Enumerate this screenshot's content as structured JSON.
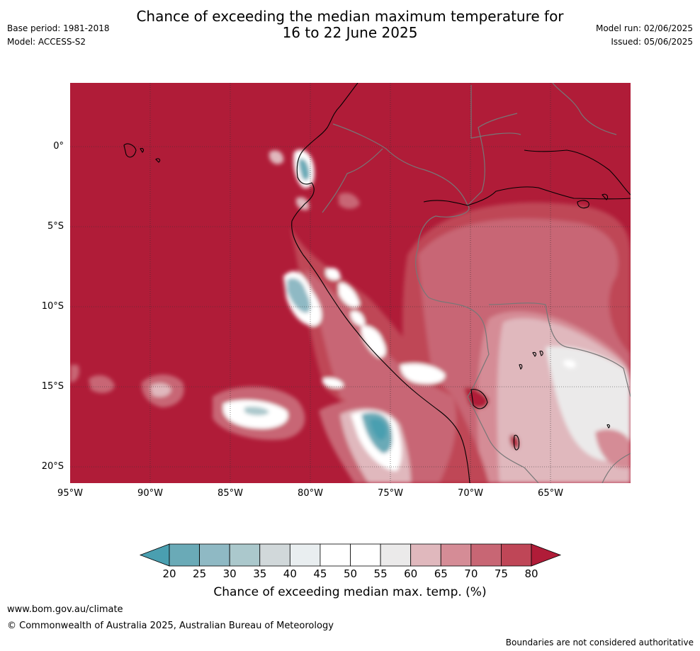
{
  "header": {
    "base_period": "Base period: 1981-2018",
    "model": "Model: ACCESS-S2",
    "title_line1": "Chance of exceeding the median maximum temperature for",
    "title_line2": "16 to 22 June 2025",
    "model_run": "Model run: 02/06/2025",
    "issued": "Issued: 05/06/2025"
  },
  "map": {
    "x_ticks": [
      "95°W",
      "90°W",
      "85°W",
      "80°W",
      "75°W",
      "70°W",
      "65°W"
    ],
    "y_ticks": [
      "0°",
      "5°S",
      "10°S",
      "15°S",
      "20°S"
    ],
    "background_color": "#b01c38",
    "coast_color": "#000000",
    "border_color": "#777777"
  },
  "legend": {
    "title": "Chance of exceeding median max. temp. (%)",
    "labels": [
      "20",
      "25",
      "30",
      "35",
      "40",
      "45",
      "50",
      "55",
      "60",
      "65",
      "70",
      "75",
      "80"
    ],
    "colors": [
      "#4a9fb0",
      "#6aaab7",
      "#8fb9c4",
      "#abc8cc",
      "#d1d8da",
      "#e9eef0",
      "#ffffff",
      "#ffffff",
      "#ebeaea",
      "#e0b8bd",
      "#d58c96",
      "#c86674",
      "#bf4657",
      "#b01c38"
    ]
  },
  "footer": {
    "url": "www.bom.gov.au/climate",
    "copyright": "© Commonwealth of Australia 2025, Australian Bureau of Meteorology",
    "disclaimer": "Boundaries are not considered authoritative"
  }
}
